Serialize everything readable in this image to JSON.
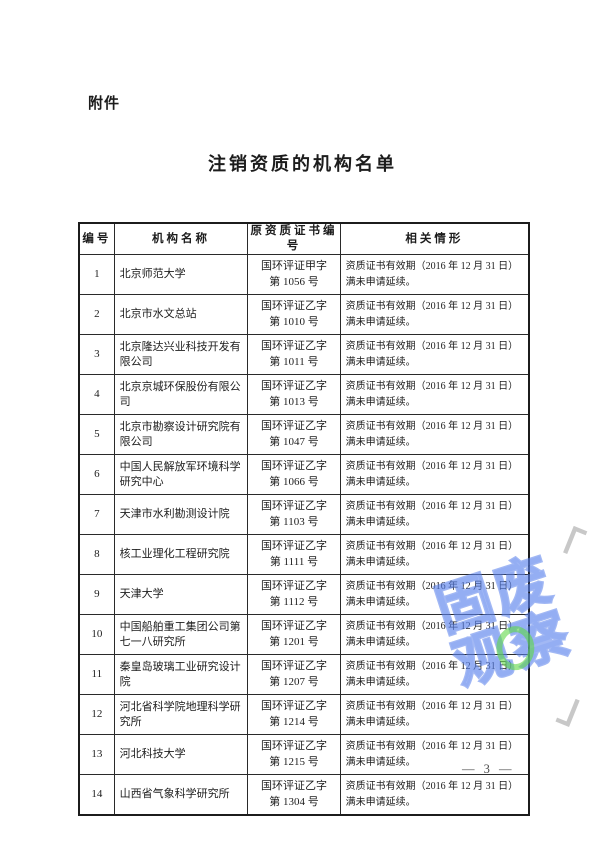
{
  "page": {
    "attachment_label": "附件",
    "title": "注销资质的机构名单",
    "page_number": "— 3 —"
  },
  "watermark": {
    "line1": "固废",
    "line2": "观察",
    "open_bracket": "「",
    "close_bracket": "」",
    "arrow": "»",
    "blue_color": "#557de8",
    "green_color": "#5fd746",
    "grey_color": "#9b9b9b"
  },
  "table": {
    "headers": [
      "编号",
      "机构名称",
      "原资质证书编号",
      "相关情形"
    ],
    "rows": [
      {
        "no": "1",
        "name": "北京师范大学",
        "cert_line1": "国环评证甲字",
        "cert_line2": "第 1056 号",
        "situation_line1": "资质证书有效期（2016 年 12 月 31 日）",
        "situation_line2": "满未申请延续。"
      },
      {
        "no": "2",
        "name": "北京市水文总站",
        "cert_line1": "国环评证乙字",
        "cert_line2": "第 1010 号",
        "situation_line1": "资质证书有效期（2016 年 12 月 31 日）",
        "situation_line2": "满未申请延续。"
      },
      {
        "no": "3",
        "name": "北京隆达兴业科技开发有限公司",
        "cert_line1": "国环评证乙字",
        "cert_line2": "第 1011 号",
        "situation_line1": "资质证书有效期（2016 年 12 月 31 日）",
        "situation_line2": "满未申请延续。"
      },
      {
        "no": "4",
        "name": "北京京城环保股份有限公司",
        "cert_line1": "国环评证乙字",
        "cert_line2": "第 1013 号",
        "situation_line1": "资质证书有效期（2016 年 12 月 31 日）",
        "situation_line2": "满未申请延续。"
      },
      {
        "no": "5",
        "name": "北京市勘察设计研究院有限公司",
        "cert_line1": "国环评证乙字",
        "cert_line2": "第 1047 号",
        "situation_line1": "资质证书有效期（2016 年 12 月 31 日）",
        "situation_line2": "满未申请延续。"
      },
      {
        "no": "6",
        "name": "中国人民解放军环境科学研究中心",
        "cert_line1": "国环评证乙字",
        "cert_line2": "第 1066 号",
        "situation_line1": "资质证书有效期（2016 年 12 月 31 日）",
        "situation_line2": "满未申请延续。"
      },
      {
        "no": "7",
        "name": "天津市水利勘测设计院",
        "cert_line1": "国环评证乙字",
        "cert_line2": "第 1103 号",
        "situation_line1": "资质证书有效期（2016 年 12 月 31 日）",
        "situation_line2": "满未申请延续。"
      },
      {
        "no": "8",
        "name": "核工业理化工程研究院",
        "cert_line1": "国环评证乙字",
        "cert_line2": "第 1111 号",
        "situation_line1": "资质证书有效期（2016 年 12 月 31 日）",
        "situation_line2": "满未申请延续。"
      },
      {
        "no": "9",
        "name": "天津大学",
        "cert_line1": "国环评证乙字",
        "cert_line2": "第 1112 号",
        "situation_line1": "资质证书有效期（2016 年 12 月 31 日）",
        "situation_line2": "满未申请延续。"
      },
      {
        "no": "10",
        "name": "中国船舶重工集团公司第七一八研究所",
        "cert_line1": "国环评证乙字",
        "cert_line2": "第 1201 号",
        "situation_line1": "资质证书有效期（2016 年 12 月 31 日）",
        "situation_line2": "满未申请延续。"
      },
      {
        "no": "11",
        "name": "秦皇岛玻璃工业研究设计院",
        "cert_line1": "国环评证乙字",
        "cert_line2": "第 1207 号",
        "situation_line1": "资质证书有效期（2016 年 12 月 31 日）",
        "situation_line2": "满未申请延续。"
      },
      {
        "no": "12",
        "name": "河北省科学院地理科学研究所",
        "cert_line1": "国环评证乙字",
        "cert_line2": "第 1214 号",
        "situation_line1": "资质证书有效期（2016 年 12 月 31 日）",
        "situation_line2": "满未申请延续。"
      },
      {
        "no": "13",
        "name": "河北科技大学",
        "cert_line1": "国环评证乙字",
        "cert_line2": "第 1215 号",
        "situation_line1": "资质证书有效期（2016 年 12 月 31 日）",
        "situation_line2": "满未申请延续。"
      },
      {
        "no": "14",
        "name": "山西省气象科学研究所",
        "cert_line1": "国环评证乙字",
        "cert_line2": "第 1304 号",
        "situation_line1": "资质证书有效期（2016 年 12 月 31 日）",
        "situation_line2": "满未申请延续。"
      }
    ]
  }
}
